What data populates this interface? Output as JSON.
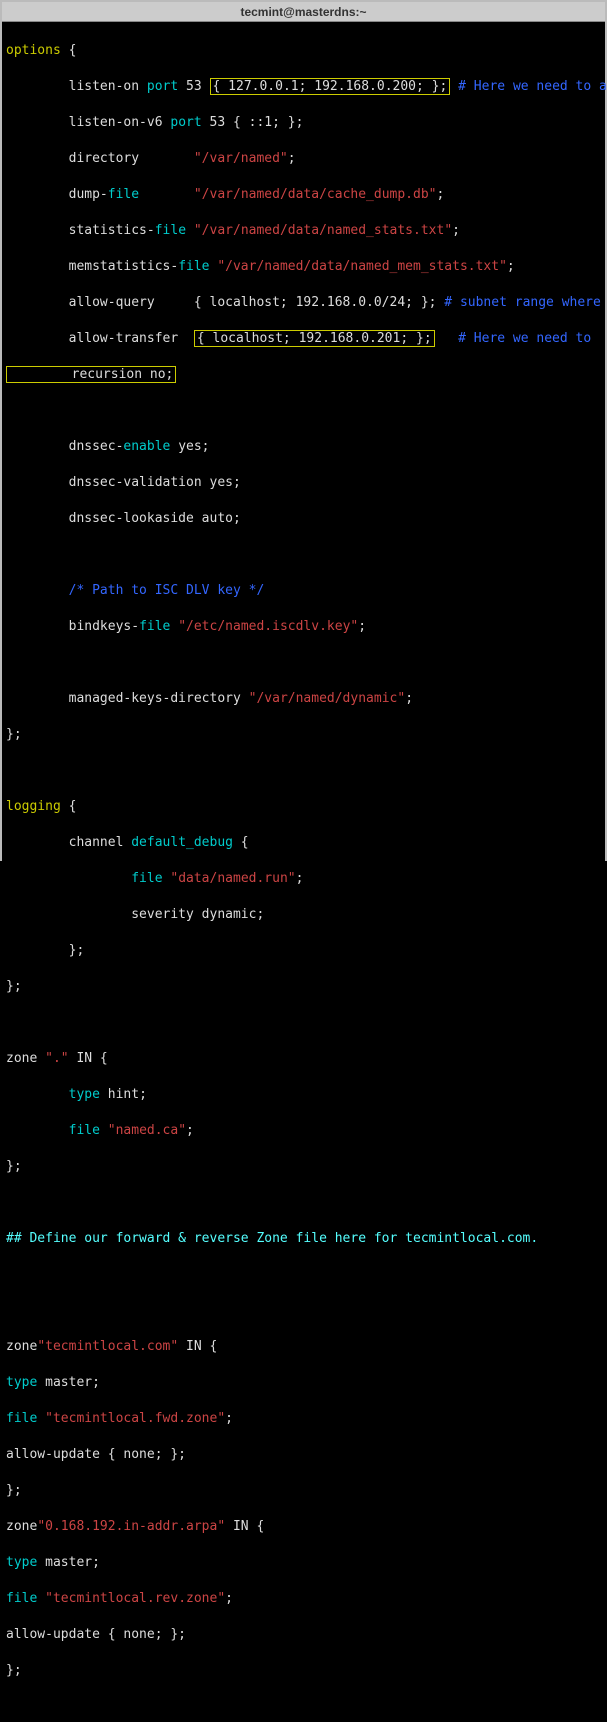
{
  "window": {
    "title": "tecmint@masterdns:~"
  },
  "colors": {
    "bg": "#000000",
    "yellow": "#cccc00",
    "cyan": "#00cccc",
    "white": "#dddddd",
    "red": "#cc4444",
    "blue": "#3366ff",
    "bright_cyan": "#55ffff"
  },
  "code": {
    "l1": {
      "a": "options",
      "b": " {"
    },
    "l2": {
      "a": "        listen-on ",
      "b": "port",
      "c": " 53 ",
      "box": "{ 127.0.0.1; 192.168.0.200; };",
      "comment": " # Here we need to a"
    },
    "l3": {
      "a": "        listen-on-v6 ",
      "b": "port",
      "c": " 53 { ::1; };"
    },
    "l4": {
      "a": "        directory       ",
      "b": "\"/var/named\"",
      "c": ";"
    },
    "l5": {
      "a": "        dump-",
      "b": "file",
      "c": "       ",
      "d": "\"/var/named/data/cache_dump.db\"",
      "e": ";"
    },
    "l6": {
      "a": "        statistics-",
      "b": "file",
      "c": " ",
      "d": "\"/var/named/data/named_stats.txt\"",
      "e": ";"
    },
    "l7": {
      "a": "        memstatistics-",
      "b": "file",
      "c": " ",
      "d": "\"/var/named/data/named_mem_stats.txt\"",
      "e": ";"
    },
    "l8": {
      "a": "        allow-query     { localhost; 192.168.0.0/24; }; ",
      "comment": "# subnet range where"
    },
    "l9": {
      "a": "        allow-transfer  ",
      "box": "{ localhost; 192.168.0.201; };",
      "comment": "   # Here we need to"
    },
    "l10": {
      "box": "        recursion no;"
    },
    "l11": "",
    "l12": {
      "a": "        dnssec-",
      "b": "enable",
      "c": " yes;"
    },
    "l13": {
      "a": "        dnssec-validation yes;"
    },
    "l14": {
      "a": "        dnssec-lookaside auto;"
    },
    "l15": "",
    "l16": {
      "a": "        /* Path to ISC DLV key */"
    },
    "l17": {
      "a": "        bindkeys-",
      "b": "file",
      "c": " ",
      "d": "\"/etc/named.iscdlv.key\"",
      "e": ";"
    },
    "l18": "",
    "l19": {
      "a": "        managed-keys-directory ",
      "b": "\"/var/named/dynamic\"",
      "c": ";"
    },
    "l20": {
      "a": "};"
    },
    "l21": "",
    "l22": {
      "a": "logging",
      "b": " {"
    },
    "l23": {
      "a": "        channel ",
      "b": "default_debug",
      "c": " {"
    },
    "l24": {
      "a": "                ",
      "b": "file",
      "c": " ",
      "d": "\"data/named.run\"",
      "e": ";"
    },
    "l25": {
      "a": "                severity dynamic;"
    },
    "l26": {
      "a": "        };"
    },
    "l27": {
      "a": "};"
    },
    "l28": "",
    "l29": {
      "a": "zone ",
      "b": "\".\"",
      "c": " IN {"
    },
    "l30": {
      "a": "        ",
      "b": "type",
      "c": " hint;"
    },
    "l31": {
      "a": "        ",
      "b": "file",
      "c": " ",
      "d": "\"named.ca\"",
      "e": ";"
    },
    "l32": {
      "a": "};"
    },
    "l33": "",
    "l34": {
      "a": "## Define our forward & reverse Zone file here for tecmintlocal.com."
    },
    "l35": "",
    "l36": "",
    "l37": {
      "a": "zone",
      "b": "\"tecmintlocal.com\"",
      "c": " IN {"
    },
    "l38": {
      "a": "type",
      "b": " master;"
    },
    "l39": {
      "a": "file",
      "b": " ",
      "c": "\"tecmintlocal.fwd.zone\"",
      "d": ";"
    },
    "l40": {
      "a": "allow-update { none; };"
    },
    "l41": {
      "a": "};"
    },
    "l42": {
      "a": "zone",
      "b": "\"0.168.192.in-addr.arpa\"",
      "c": " IN {"
    },
    "l43": {
      "a": "type",
      "b": " master;"
    },
    "l44": {
      "a": "file",
      "b": " ",
      "c": "\"tecmintlocal.rev.zone\"",
      "d": ";"
    },
    "l45": {
      "a": "allow-update { none; };"
    },
    "l46": {
      "a": "};"
    },
    "l47": "",
    "l48": {
      "cursor": "#",
      "a": "####"
    }
  }
}
